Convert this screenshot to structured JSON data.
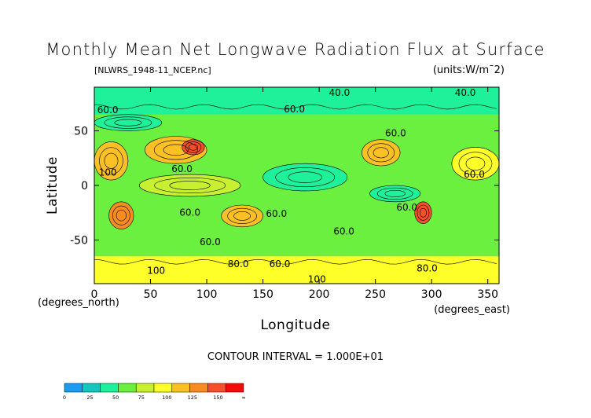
{
  "chart_data": {
    "type": "heatmap",
    "title": "Monthly Mean Net Longwave Radiation Flux at Surface",
    "file_label": "[NLWRS_1948-11_NCEP.nc]",
    "units_label": "(units:W/m¯2)",
    "xlabel": "Longitude",
    "ylabel": "Latitude",
    "x_unit_label": "(degrees_east)",
    "y_unit_label": "(degrees_north)",
    "xlim": [
      0,
      360
    ],
    "ylim": [
      -90,
      90
    ],
    "x_ticks": [
      0,
      50,
      100,
      150,
      200,
      250,
      300,
      350
    ],
    "y_ticks": [
      -50,
      0,
      50
    ],
    "contour_interval_text": "CONTOUR INTERVAL = 1.000E+01",
    "contour_labels": [
      {
        "text": "40.0",
        "lon": 218,
        "lat": 85
      },
      {
        "text": "40.0",
        "lon": 330,
        "lat": 85
      },
      {
        "text": "60.0",
        "lon": 12,
        "lat": 69
      },
      {
        "text": "60.0",
        "lon": 178,
        "lat": 70
      },
      {
        "text": "60.0",
        "lon": 268,
        "lat": 48
      },
      {
        "text": "60.0",
        "lon": 78,
        "lat": 15
      },
      {
        "text": "60.0",
        "lon": 338,
        "lat": 10
      },
      {
        "text": "60.0",
        "lon": 85,
        "lat": -25
      },
      {
        "text": "60.0",
        "lon": 162,
        "lat": -26
      },
      {
        "text": "60.0",
        "lon": 222,
        "lat": -42
      },
      {
        "text": "60.0",
        "lon": 103,
        "lat": -52
      },
      {
        "text": "60.0",
        "lon": 278,
        "lat": -20
      },
      {
        "text": "100",
        "lon": 12,
        "lat": 12
      },
      {
        "text": "100",
        "lon": 55,
        "lat": -78
      },
      {
        "text": "80.0",
        "lon": 128,
        "lat": -72
      },
      {
        "text": "60.0",
        "lon": 165,
        "lat": -72
      },
      {
        "text": "100",
        "lon": 198,
        "lat": -86
      },
      {
        "text": "80.0",
        "lon": 296,
        "lat": -76
      }
    ],
    "colorbar": {
      "colors": [
        "#1a9cf0",
        "#15c5c0",
        "#1ff09a",
        "#6cf040",
        "#c8f030",
        "#fefe28",
        "#fbc024",
        "#f88c20",
        "#f5502a",
        "#f50a0a"
      ],
      "tick_labels": [
        "0",
        "25",
        "50",
        "75",
        "100",
        "125",
        "150",
        "∞"
      ]
    },
    "regions": [
      {
        "lon": [
          0,
          360
        ],
        "lat": [
          65,
          90
        ],
        "value": 40
      },
      {
        "lon": [
          0,
          360
        ],
        "lat": [
          -90,
          -65
        ],
        "value": 95
      },
      {
        "lon": [
          0,
          30
        ],
        "lat": [
          5,
          40
        ],
        "value": 105
      },
      {
        "lon": [
          45,
          100
        ],
        "lat": [
          20,
          45
        ],
        "value": 110
      },
      {
        "lon": [
          78,
          98
        ],
        "lat": [
          28,
          42
        ],
        "value": 150
      },
      {
        "lon": [
          238,
          272
        ],
        "lat": [
          18,
          42
        ],
        "value": 105
      },
      {
        "lon": [
          318,
          360
        ],
        "lat": [
          5,
          35
        ],
        "value": 100
      },
      {
        "lon": [
          13,
          35
        ],
        "lat": [
          -40,
          -15
        ],
        "value": 120
      },
      {
        "lon": [
          113,
          150
        ],
        "lat": [
          -38,
          -18
        ],
        "value": 115
      },
      {
        "lon": [
          285,
          300
        ],
        "lat": [
          -35,
          -15
        ],
        "value": 145
      },
      {
        "lon": [
          40,
          130
        ],
        "lat": [
          -10,
          10
        ],
        "value": 72
      },
      {
        "lon": [
          150,
          225
        ],
        "lat": [
          -5,
          20
        ],
        "value": 45
      },
      {
        "lon": [
          245,
          290
        ],
        "lat": [
          -15,
          0
        ],
        "value": 45
      },
      {
        "lon": [
          0,
          60
        ],
        "lat": [
          50,
          65
        ],
        "value": 35
      }
    ],
    "background_value": 62
  }
}
